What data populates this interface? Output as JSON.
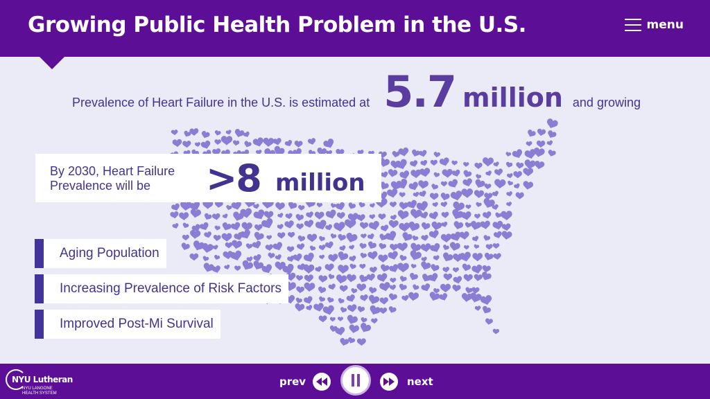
{
  "header": {
    "title": "Growing Public Health Problem in the U.S.",
    "menu_label": "menu"
  },
  "prevalence": {
    "prefix": "Prevalence of Heart Failure in the U.S. is estimated at",
    "value": "5.7",
    "unit": "million",
    "suffix": "and growing"
  },
  "forecast": {
    "text": "By 2030, Heart Failure Prevalence will be",
    "value": ">8",
    "unit": "million"
  },
  "factors": [
    "Aging Population",
    "Increasing Prevalence of Risk Factors",
    "Improved Post-Mi Survival"
  ],
  "footer": {
    "logo_main": "NYU Lutheran",
    "logo_sub_1": "NYU LANGONE",
    "logo_sub_2": "HEALTH SYSTEM",
    "prev_label": "prev",
    "next_label": "next"
  },
  "colors": {
    "brand_purple": "#5c0f96",
    "heart_purple": "#8b7cd4",
    "text_indigo": "#43338f",
    "background": "#ebebf8"
  },
  "icons": {
    "menu": "hamburger-icon",
    "rewind": "rewind-icon",
    "pause": "pause-icon",
    "forward": "fast-forward-icon",
    "map": "us-map-of-hearts"
  }
}
